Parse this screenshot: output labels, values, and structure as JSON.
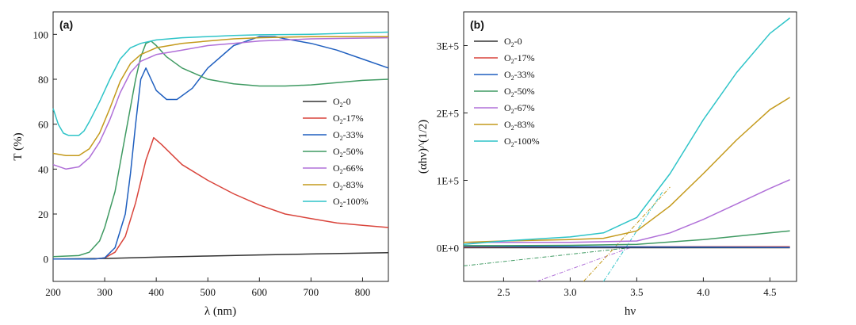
{
  "chart_data": [
    {
      "type": "line",
      "panel_label": "(a)",
      "xlabel": "λ (nm)",
      "ylabel": "T (%)",
      "xlim": [
        200,
        850
      ],
      "ylim": [
        -10,
        110
      ],
      "xticks": [
        "200",
        "300",
        "400",
        "500",
        "600",
        "700",
        "800"
      ],
      "yticks": [
        "0",
        "20",
        "40",
        "60",
        "80",
        "100"
      ],
      "legend_position": "center-right",
      "series": [
        {
          "name": "O2-0",
          "label_main": "O",
          "label_sub": "2",
          "label_suffix": "-0",
          "color": "#333333",
          "x": [
            200,
            300,
            400,
            500,
            600,
            700,
            850
          ],
          "y": [
            0,
            0.2,
            0.8,
            1.3,
            1.8,
            2.2,
            2.8
          ]
        },
        {
          "name": "O2-17%",
          "label_main": "O",
          "label_sub": "2",
          "label_suffix": "-17%",
          "color": "#d9443b",
          "x": [
            200,
            280,
            300,
            320,
            340,
            360,
            380,
            395,
            410,
            450,
            500,
            550,
            600,
            650,
            700,
            750,
            800,
            850
          ],
          "y": [
            0,
            0,
            0.5,
            3,
            10,
            25,
            44,
            54,
            51,
            42,
            35,
            29,
            24,
            20,
            18,
            16,
            15,
            14
          ]
        },
        {
          "name": "O2-33%",
          "label_main": "O",
          "label_sub": "2",
          "label_suffix": "-33%",
          "color": "#1f5fbf",
          "x": [
            200,
            280,
            300,
            320,
            340,
            350,
            360,
            370,
            380,
            390,
            400,
            420,
            440,
            470,
            500,
            550,
            600,
            630,
            650,
            700,
            750,
            800,
            850
          ],
          "y": [
            0,
            0,
            0.5,
            5,
            20,
            38,
            60,
            80,
            85,
            80,
            75,
            71,
            71,
            76,
            85,
            95,
            99,
            99,
            98,
            96,
            93,
            89,
            85
          ]
        },
        {
          "name": "O2-50%",
          "label_main": "O",
          "label_sub": "2",
          "label_suffix": "-50%",
          "color": "#3f9a62",
          "x": [
            200,
            250,
            270,
            290,
            300,
            320,
            340,
            360,
            370,
            380,
            390,
            400,
            420,
            450,
            500,
            550,
            600,
            650,
            700,
            750,
            800,
            850
          ],
          "y": [
            1,
            1.5,
            3,
            8,
            14,
            30,
            55,
            80,
            90,
            96,
            97,
            95,
            90,
            85,
            80,
            78,
            77,
            77,
            77.5,
            78.5,
            79.5,
            80
          ]
        },
        {
          "name": "O2-66%",
          "label_main": "O",
          "label_sub": "2",
          "label_suffix": "-66%",
          "color": "#b070d8",
          "x": [
            200,
            225,
            250,
            270,
            290,
            310,
            330,
            350,
            370,
            400,
            450,
            500,
            550,
            600,
            700,
            850
          ],
          "y": [
            42,
            40,
            41,
            45,
            52,
            62,
            74,
            83,
            88,
            91,
            93,
            95,
            96,
            97,
            98,
            98.5
          ]
        },
        {
          "name": "O2-83%",
          "label_main": "O",
          "label_sub": "2",
          "label_suffix": "-83%",
          "color": "#c49a1c",
          "x": [
            200,
            225,
            250,
            270,
            290,
            310,
            330,
            350,
            370,
            400,
            450,
            500,
            550,
            600,
            700,
            850
          ],
          "y": [
            47,
            46,
            46,
            49,
            56,
            67,
            79,
            87,
            91,
            94,
            96,
            97,
            98,
            98.5,
            99,
            99
          ]
        },
        {
          "name": "O2-100%",
          "label_main": "O",
          "label_sub": "2",
          "label_suffix": "-100%",
          "color": "#2ec4c8",
          "x": [
            200,
            210,
            220,
            230,
            250,
            260,
            270,
            290,
            310,
            330,
            350,
            370,
            400,
            450,
            500,
            550,
            600,
            700,
            850
          ],
          "y": [
            67,
            60,
            56,
            55,
            55,
            57,
            61,
            70,
            80,
            89,
            94,
            96,
            97.5,
            98.5,
            99,
            99.5,
            99.8,
            100,
            101
          ]
        }
      ]
    },
    {
      "type": "line",
      "panel_label": "(b)",
      "xlabel": "hν",
      "ylabel": "(αhν)^(1/2)",
      "xlim": [
        2.2,
        4.7
      ],
      "ylim": [
        -50000,
        350000
      ],
      "xticks": [
        "2.5",
        "3.0",
        "3.5",
        "4.0",
        "4.5"
      ],
      "yticks": [
        "0E+0",
        "1E+5",
        "2E+5",
        "3E+5"
      ],
      "ytick_values": [
        0,
        100000,
        200000,
        300000
      ],
      "legend_position": "top-left",
      "series": [
        {
          "name": "O2-0",
          "label_main": "O",
          "label_sub": "2",
          "label_suffix": "-0",
          "color": "#333333",
          "x": [
            2.2,
            4.65
          ],
          "y": [
            0,
            0
          ]
        },
        {
          "name": "O2-17%",
          "label_main": "O",
          "label_sub": "2",
          "label_suffix": "-17%",
          "color": "#d9443b",
          "x": [
            2.2,
            4.65
          ],
          "y": [
            1000,
            1500
          ]
        },
        {
          "name": "O2-33%",
          "label_main": "O",
          "label_sub": "2",
          "label_suffix": "-33%",
          "color": "#1f5fbf",
          "x": [
            2.2,
            4.65
          ],
          "y": [
            2000,
            500
          ]
        },
        {
          "name": "O2-50%",
          "label_main": "O",
          "label_sub": "2",
          "label_suffix": "-50%",
          "color": "#3f9a62",
          "x": [
            2.2,
            2.5,
            3.0,
            3.5,
            4.0,
            4.5,
            4.65
          ],
          "y": [
            3000,
            3000,
            3500,
            5000,
            12000,
            22000,
            25000
          ]
        },
        {
          "name": "O2-67%",
          "label_main": "O",
          "label_sub": "2",
          "label_suffix": "-67%",
          "color": "#b070d8",
          "x": [
            2.2,
            2.5,
            3.0,
            3.5,
            3.75,
            4.0,
            4.25,
            4.5,
            4.65
          ],
          "y": [
            8000,
            8000,
            8000,
            10000,
            22000,
            42000,
            65000,
            88000,
            101000
          ]
        },
        {
          "name": "O2-83%",
          "label_main": "O",
          "label_sub": "2",
          "label_suffix": "-83%",
          "color": "#c49a1c",
          "x": [
            2.2,
            2.5,
            3.0,
            3.25,
            3.5,
            3.75,
            4.0,
            4.25,
            4.5,
            4.65
          ],
          "y": [
            8000,
            10000,
            12000,
            14000,
            25000,
            62000,
            110000,
            160000,
            205000,
            223000
          ]
        },
        {
          "name": "O2-100%",
          "label_main": "O",
          "label_sub": "2",
          "label_suffix": "-100%",
          "color": "#2ec4c8",
          "x": [
            2.2,
            2.5,
            3.0,
            3.25,
            3.5,
            3.75,
            4.0,
            4.25,
            4.5,
            4.65
          ],
          "y": [
            5000,
            10000,
            16000,
            22000,
            45000,
            110000,
            190000,
            260000,
            318000,
            341000
          ]
        }
      ],
      "tangent_lines": [
        {
          "series": "O2-50%",
          "color": "#3f9a62",
          "x": [
            2.2,
            3.45
          ],
          "y": [
            -27000,
            0
          ]
        },
        {
          "series": "O2-67%",
          "color": "#b070d8",
          "x": [
            2.75,
            3.45
          ],
          "y": [
            -50000,
            0
          ]
        },
        {
          "series": "O2-83%",
          "color": "#c49a1c",
          "x": [
            3.1,
            3.75
          ],
          "y": [
            -50000,
            90000
          ]
        },
        {
          "series": "O2-100%",
          "color": "#2ec4c8",
          "x": [
            3.25,
            3.7
          ],
          "y": [
            -50000,
            85000
          ]
        }
      ]
    }
  ]
}
